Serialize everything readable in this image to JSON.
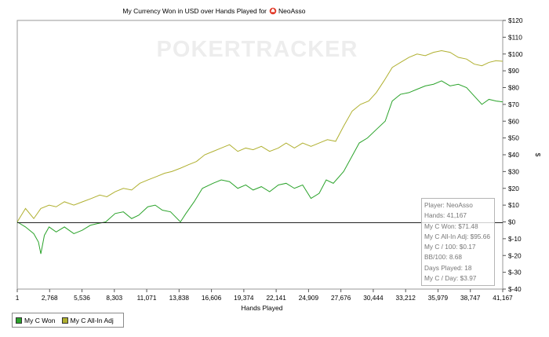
{
  "chart_data": {
    "type": "line",
    "title": "My Currency Won in USD over Hands Played for",
    "player_icon": "poker-spade-icon",
    "player_name": "NeoAsso",
    "watermark": "POKERTRACKER",
    "xlabel": "Hands Played",
    "ylabel": "$",
    "xlim": [
      1,
      41167
    ],
    "ylim": [
      -40,
      120
    ],
    "x_ticks": [
      "1",
      "2,768",
      "5,536",
      "8,303",
      "11,071",
      "13,838",
      "16,606",
      "19,374",
      "22,141",
      "24,909",
      "27,676",
      "30,444",
      "33,212",
      "35,979",
      "38,747",
      "41,167"
    ],
    "y_ticks": [
      "$120",
      "$110",
      "$100",
      "$90",
      "$80",
      "$70",
      "$60",
      "$50",
      "$40",
      "$30",
      "$20",
      "$10",
      "$0",
      "$-10",
      "$-20",
      "$-30",
      "$-40"
    ],
    "grid": false,
    "legend_position": "bottom-left",
    "series": [
      {
        "name": "My C Won",
        "color": "#2ba32b",
        "points": [
          [
            1,
            0
          ],
          [
            700,
            -3
          ],
          [
            1400,
            -7
          ],
          [
            1800,
            -12
          ],
          [
            2000,
            -19
          ],
          [
            2300,
            -8
          ],
          [
            2700,
            -3
          ],
          [
            3300,
            -6
          ],
          [
            4000,
            -3
          ],
          [
            4800,
            -7
          ],
          [
            5500,
            -5
          ],
          [
            6200,
            -2
          ],
          [
            6800,
            -1
          ],
          [
            7500,
            0
          ],
          [
            8303,
            5
          ],
          [
            9000,
            6
          ],
          [
            9700,
            2
          ],
          [
            10300,
            4
          ],
          [
            11071,
            9
          ],
          [
            11700,
            10
          ],
          [
            12300,
            7
          ],
          [
            13000,
            6
          ],
          [
            13838,
            0
          ],
          [
            14300,
            5
          ],
          [
            15000,
            12
          ],
          [
            15700,
            20
          ],
          [
            16606,
            23
          ],
          [
            17300,
            25
          ],
          [
            18000,
            24
          ],
          [
            18700,
            20
          ],
          [
            19374,
            22
          ],
          [
            20000,
            19
          ],
          [
            20700,
            21
          ],
          [
            21400,
            18
          ],
          [
            22141,
            22
          ],
          [
            22800,
            23
          ],
          [
            23500,
            20
          ],
          [
            24200,
            22
          ],
          [
            24909,
            14
          ],
          [
            25600,
            17
          ],
          [
            26200,
            25
          ],
          [
            26800,
            23
          ],
          [
            27676,
            30
          ],
          [
            28300,
            38
          ],
          [
            29000,
            47
          ],
          [
            29700,
            50
          ],
          [
            30444,
            55
          ],
          [
            31200,
            60
          ],
          [
            31800,
            72
          ],
          [
            32500,
            76
          ],
          [
            33212,
            77
          ],
          [
            33900,
            79
          ],
          [
            34600,
            81
          ],
          [
            35300,
            82
          ],
          [
            35979,
            84
          ],
          [
            36700,
            81
          ],
          [
            37400,
            82
          ],
          [
            38100,
            80
          ],
          [
            38747,
            75
          ],
          [
            39400,
            70
          ],
          [
            40000,
            73
          ],
          [
            40600,
            72
          ],
          [
            41167,
            71.48
          ]
        ]
      },
      {
        "name": "My C All-In Adj",
        "color": "#b0b030",
        "points": [
          [
            1,
            0
          ],
          [
            700,
            8
          ],
          [
            1400,
            2
          ],
          [
            2000,
            8
          ],
          [
            2700,
            10
          ],
          [
            3300,
            9
          ],
          [
            4000,
            12
          ],
          [
            4800,
            10
          ],
          [
            5536,
            12
          ],
          [
            6300,
            14
          ],
          [
            7000,
            16
          ],
          [
            7600,
            15
          ],
          [
            8303,
            18
          ],
          [
            9000,
            20
          ],
          [
            9700,
            19
          ],
          [
            10400,
            23
          ],
          [
            11071,
            25
          ],
          [
            11800,
            27
          ],
          [
            12500,
            29
          ],
          [
            13100,
            30
          ],
          [
            13838,
            32
          ],
          [
            14500,
            34
          ],
          [
            15200,
            36
          ],
          [
            15900,
            40
          ],
          [
            16606,
            42
          ],
          [
            17300,
            44
          ],
          [
            18000,
            46
          ],
          [
            18700,
            42
          ],
          [
            19374,
            44
          ],
          [
            20000,
            43
          ],
          [
            20700,
            45
          ],
          [
            21400,
            42
          ],
          [
            22141,
            44
          ],
          [
            22800,
            47
          ],
          [
            23500,
            44
          ],
          [
            24200,
            47
          ],
          [
            24909,
            45
          ],
          [
            25600,
            47
          ],
          [
            26300,
            49
          ],
          [
            27000,
            48
          ],
          [
            27676,
            57
          ],
          [
            28400,
            66
          ],
          [
            29100,
            70
          ],
          [
            29800,
            72
          ],
          [
            30444,
            77
          ],
          [
            31100,
            84
          ],
          [
            31800,
            92
          ],
          [
            32500,
            95
          ],
          [
            33212,
            98
          ],
          [
            33900,
            100
          ],
          [
            34600,
            99
          ],
          [
            35300,
            101
          ],
          [
            35979,
            102
          ],
          [
            36700,
            101
          ],
          [
            37400,
            98
          ],
          [
            38100,
            97
          ],
          [
            38747,
            94
          ],
          [
            39400,
            93
          ],
          [
            40000,
            95
          ],
          [
            40600,
            96
          ],
          [
            41167,
            95.66
          ]
        ]
      }
    ],
    "stats": {
      "player_label": "Player:",
      "player_value": "NeoAsso",
      "hands_label": "Hands:",
      "hands_value": "41,167",
      "won_label": "My C Won:",
      "won_value": "$71.48",
      "adj_label": "My C All-In Adj:",
      "adj_value": "$95.66",
      "per100_label": "My C / 100:",
      "per100_value": "$0.17",
      "bb100_label": "BB/100:",
      "bb100_value": "8.68",
      "days_label": "Days Played:",
      "days_value": "18",
      "perday_label": "My C / Day:",
      "perday_value": "$3.97"
    }
  }
}
